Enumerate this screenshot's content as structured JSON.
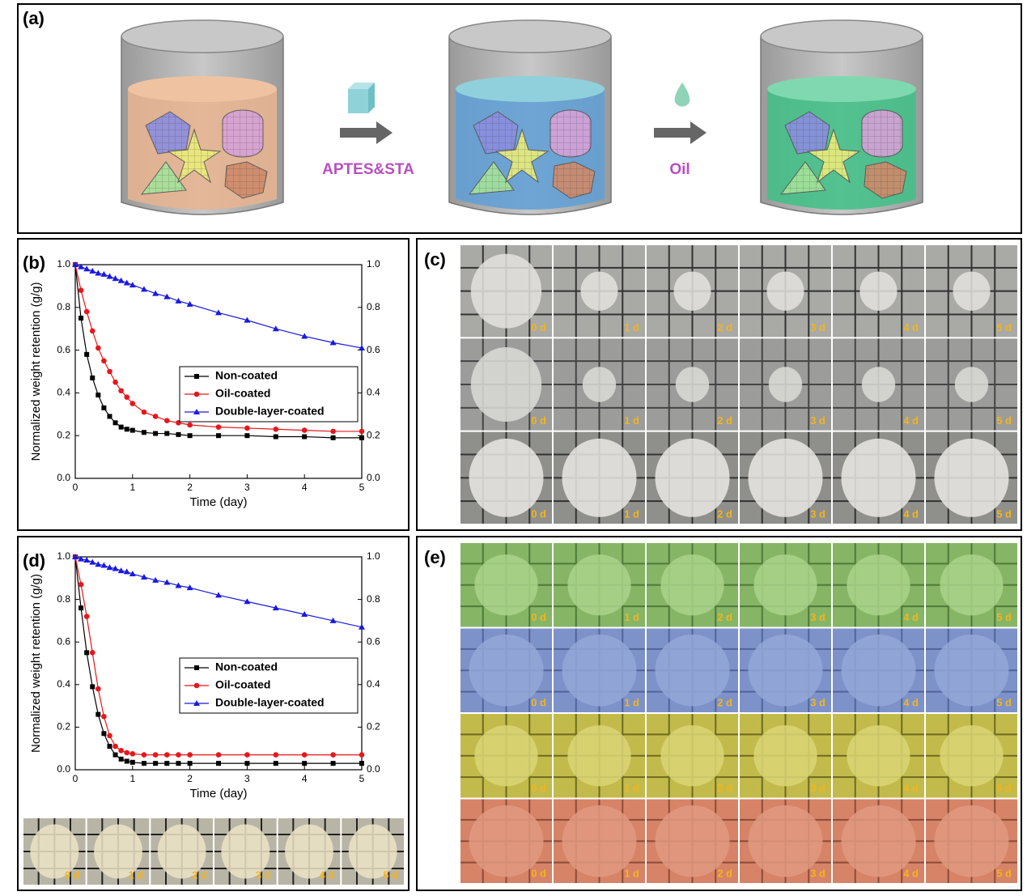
{
  "panel_a": {
    "label": "(a)",
    "step1": "APTES&STA",
    "step2": "Oil"
  },
  "chart_data": [
    {
      "type": "line",
      "panel_label": "(b)",
      "ylabel": "Normalized weight retention (g/g)",
      "xlabel": "Time (day)",
      "x": [
        0,
        0.1,
        0.2,
        0.3,
        0.4,
        0.5,
        0.6,
        0.7,
        0.8,
        0.9,
        1.0,
        1.2,
        1.4,
        1.6,
        1.8,
        2.0,
        2.5,
        3.0,
        3.5,
        4.0,
        4.5,
        5.0
      ],
      "series": [
        {
          "name": "Non-coated",
          "color": "#000000",
          "values": [
            1.0,
            0.75,
            0.58,
            0.47,
            0.39,
            0.33,
            0.29,
            0.26,
            0.24,
            0.23,
            0.225,
            0.215,
            0.21,
            0.21,
            0.205,
            0.2,
            0.2,
            0.2,
            0.195,
            0.195,
            0.19,
            0.19
          ]
        },
        {
          "name": "Oil-coated",
          "color": "#e8161b",
          "values": [
            1.0,
            0.88,
            0.78,
            0.69,
            0.61,
            0.55,
            0.5,
            0.45,
            0.41,
            0.38,
            0.35,
            0.31,
            0.29,
            0.27,
            0.26,
            0.25,
            0.24,
            0.235,
            0.23,
            0.225,
            0.22,
            0.22
          ]
        },
        {
          "name": "Double-layer-coated",
          "color": "#1a1adf",
          "values": [
            1.0,
            0.99,
            0.98,
            0.97,
            0.96,
            0.955,
            0.945,
            0.935,
            0.925,
            0.915,
            0.905,
            0.885,
            0.865,
            0.85,
            0.83,
            0.815,
            0.775,
            0.74,
            0.7,
            0.665,
            0.635,
            0.61
          ]
        }
      ],
      "xlim": [
        0,
        5
      ],
      "xticks": [
        0,
        1,
        2,
        3,
        4,
        5
      ],
      "ylim": [
        0,
        1
      ],
      "yticks": [
        {
          "value": 0,
          "label": "0.0"
        },
        0.2,
        0.4,
        0.6,
        0.8,
        {
          "value": 1,
          "label": "1.0"
        }
      ],
      "y2lim": [
        0,
        1
      ],
      "y2ticks": [
        {
          "value": 0,
          "label": "0.0"
        },
        0.2,
        0.4,
        0.6,
        0.8,
        {
          "value": 1,
          "label": "1.0"
        }
      ],
      "legend": "lower right"
    },
    {
      "type": "line",
      "panel_label": "(d)",
      "ylabel": "Normalized weight retention (g/g)",
      "xlabel": "Time (day)",
      "x": [
        0,
        0.1,
        0.2,
        0.3,
        0.4,
        0.5,
        0.6,
        0.7,
        0.8,
        0.9,
        1.0,
        1.2,
        1.4,
        1.6,
        1.8,
        2.0,
        2.5,
        3.0,
        3.5,
        4.0,
        4.5,
        5.0
      ],
      "series": [
        {
          "name": "Non-coated",
          "color": "#000000",
          "values": [
            1.0,
            0.76,
            0.55,
            0.39,
            0.26,
            0.17,
            0.11,
            0.07,
            0.05,
            0.04,
            0.035,
            0.03,
            0.03,
            0.03,
            0.03,
            0.03,
            0.03,
            0.03,
            0.03,
            0.03,
            0.03,
            0.03
          ]
        },
        {
          "name": "Oil-coated",
          "color": "#e8161b",
          "values": [
            1.0,
            0.87,
            0.72,
            0.55,
            0.38,
            0.25,
            0.16,
            0.11,
            0.09,
            0.08,
            0.075,
            0.07,
            0.07,
            0.07,
            0.07,
            0.07,
            0.07,
            0.07,
            0.07,
            0.07,
            0.07,
            0.07
          ]
        },
        {
          "name": "Double-layer-coated",
          "color": "#1a1adf",
          "values": [
            1.0,
            0.99,
            0.985,
            0.975,
            0.965,
            0.96,
            0.95,
            0.945,
            0.935,
            0.93,
            0.92,
            0.905,
            0.89,
            0.88,
            0.865,
            0.855,
            0.82,
            0.79,
            0.76,
            0.73,
            0.7,
            0.67
          ]
        }
      ],
      "xlim": [
        0,
        5
      ],
      "xticks": [
        0,
        1,
        2,
        3,
        4,
        5
      ],
      "ylim": [
        0,
        1
      ],
      "yticks": [
        {
          "value": 0,
          "label": "0.0"
        },
        0.2,
        0.4,
        0.6,
        0.8,
        {
          "value": 1,
          "label": "1.0"
        }
      ],
      "y2lim": [
        0,
        1
      ],
      "y2ticks": [
        {
          "value": 0,
          "label": "0.0"
        },
        0.2,
        0.4,
        0.6,
        0.8,
        {
          "value": 1,
          "label": "1.0"
        }
      ],
      "legend": "lower right"
    }
  ],
  "photos_c": {
    "label": "(c)",
    "rows": [
      [
        "0 d",
        "1 d",
        "2 d",
        "3 d",
        "4 d",
        "5 d"
      ],
      [
        "0 d",
        "1 d",
        "2 d",
        "3 d",
        "4 d",
        "5 d"
      ],
      [
        "0 d",
        "1 d",
        "2 d",
        "3 d",
        "4 d",
        "5 d"
      ]
    ]
  },
  "photos_d": {
    "rows": [
      [
        "0 d",
        "1 d",
        "2 d",
        "3 d",
        "4 d",
        "5 d"
      ]
    ]
  },
  "photos_e": {
    "label": "(e)",
    "rows": [
      [
        "0 d",
        "1 d",
        "2 d",
        "3 d",
        "4 d",
        "5 d"
      ],
      [
        "0 d",
        "1 d",
        "2 d",
        "3 d",
        "4 d",
        "5 d"
      ],
      [
        "0 d",
        "1 d",
        "2 d",
        "3 d",
        "4 d",
        "5 d"
      ],
      [
        "0 d",
        "1 d",
        "2 d",
        "3 d",
        "4 d",
        "5 d"
      ]
    ]
  }
}
